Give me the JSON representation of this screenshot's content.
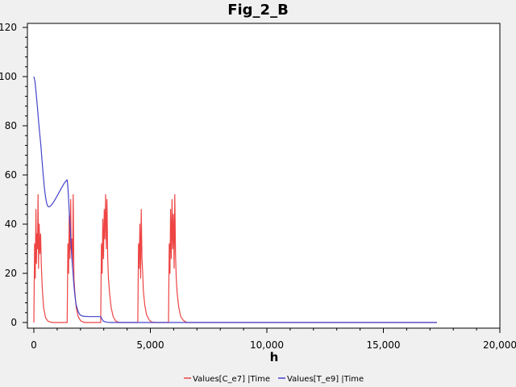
{
  "chart_data": {
    "type": "line",
    "title": "Fig_2_B",
    "xlabel": "h",
    "ylabel": "",
    "xlim": [
      0,
      20000
    ],
    "ylim": [
      0,
      120
    ],
    "x_ticks": [
      0,
      5000,
      10000,
      15000,
      20000
    ],
    "x_tick_labels": [
      "0",
      "5,000",
      "10,000",
      "15,000",
      "20,000"
    ],
    "y_ticks": [
      0,
      20,
      40,
      60,
      80,
      100,
      120
    ],
    "y_tick_labels": [
      "0",
      "20",
      "40",
      "60",
      "80",
      "100",
      "120"
    ],
    "grid": false,
    "legend_position": "bottom",
    "series": [
      {
        "name": "Values[C_e7] |Time",
        "color": "#ee4444",
        "x": [
          0,
          30,
          60,
          90,
          110,
          130,
          160,
          180,
          200,
          230,
          260,
          290,
          320,
          360,
          420,
          500,
          600,
          700,
          800,
          900,
          1000,
          1100,
          1200,
          1300,
          1400,
          1430,
          1460,
          1490,
          1520,
          1550,
          1580,
          1600,
          1630,
          1660,
          1690,
          1720,
          1760,
          1820,
          1900,
          2000,
          2100,
          2200,
          2300,
          2400,
          2500,
          2600,
          2700,
          2800,
          2870,
          2900,
          2930,
          2960,
          2990,
          3020,
          3050,
          3080,
          3110,
          3140,
          3170,
          3200,
          3250,
          3320,
          3400,
          3500,
          3600,
          3700,
          3800,
          3900,
          4000,
          4100,
          4200,
          4300,
          4400,
          4460,
          4490,
          4520,
          4550,
          4580,
          4610,
          4640,
          4670,
          4700,
          4760,
          4840,
          4950,
          5050,
          5200,
          5350,
          5500,
          5650,
          5780,
          5810,
          5840,
          5870,
          5900,
          5930,
          5960,
          5990,
          6020,
          6050,
          6080,
          6110,
          6150,
          6220,
          6300,
          6400,
          6500,
          6600,
          6700,
          6850,
          7000,
          8000,
          10000,
          12000,
          14000,
          16000,
          17300
        ],
        "y": [
          0,
          32,
          18,
          46,
          24,
          36,
          30,
          52,
          22,
          40,
          28,
          36,
          24,
          14,
          6,
          2,
          0.6,
          0.2,
          0,
          0,
          0,
          0,
          0,
          0,
          0,
          0,
          32,
          20,
          44,
          26,
          50,
          30,
          34,
          22,
          52,
          18,
          12,
          6,
          2.5,
          0.8,
          0.2,
          0,
          0,
          0,
          0,
          0,
          0,
          0,
          0,
          32,
          20,
          42,
          26,
          46,
          34,
          52,
          30,
          50,
          26,
          18,
          12,
          6,
          2.5,
          0.8,
          0.2,
          0,
          0,
          0,
          0,
          0,
          0,
          0,
          0,
          0,
          32,
          22,
          40,
          18,
          46,
          26,
          20,
          13,
          7,
          3,
          1,
          0.2,
          0,
          0,
          0,
          0,
          0,
          32,
          20,
          46,
          26,
          50,
          30,
          44,
          22,
          52,
          28,
          18,
          12,
          6,
          2.5,
          1,
          0.3,
          0,
          0,
          0,
          0,
          0,
          0,
          0,
          0,
          0,
          0
        ]
      },
      {
        "name": "Values[T_e9] |Time",
        "color": "#4444cc",
        "x": [
          0,
          50,
          100,
          150,
          200,
          250,
          300,
          350,
          400,
          450,
          500,
          550,
          600,
          650,
          700,
          800,
          900,
          1000,
          1100,
          1200,
          1300,
          1400,
          1430,
          1460,
          1490,
          1520,
          1550,
          1580,
          1610,
          1640,
          1680,
          1720,
          1760,
          1800,
          1850,
          1900,
          1950,
          2000,
          2100,
          2200,
          2400,
          2600,
          2800,
          2870,
          2890,
          2920,
          2950,
          2980,
          3050,
          3150,
          3300,
          3500,
          4000,
          6000,
          10000,
          14000,
          17300
        ],
        "y": [
          100,
          98,
          93,
          88,
          82,
          77,
          72,
          66,
          60,
          55,
          51,
          48.5,
          47.2,
          47,
          47.2,
          48.3,
          49.8,
          51.5,
          53.2,
          55,
          56.6,
          57.8,
          58,
          55,
          50,
          45,
          40,
          35,
          30,
          25,
          20,
          15,
          11,
          8,
          6,
          4.5,
          3.5,
          3,
          2.6,
          2.5,
          2.4,
          2.4,
          2.4,
          2.4,
          2,
          1.5,
          1,
          0.6,
          0.3,
          0.1,
          0,
          0,
          0,
          0,
          0,
          0,
          0
        ]
      }
    ]
  }
}
